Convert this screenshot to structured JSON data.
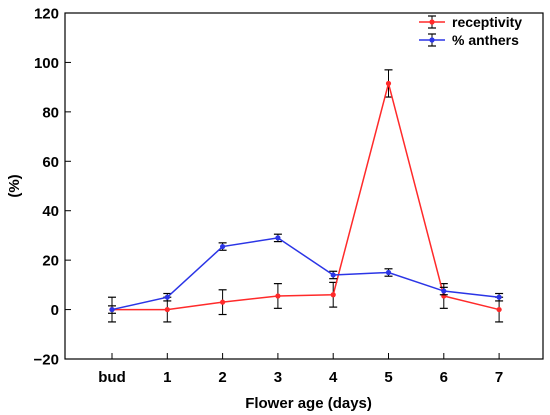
{
  "chart_data": {
    "type": "line",
    "xlabel": "Flower age (days)",
    "ylabel": "(%)",
    "categories": [
      "bud",
      "1",
      "2",
      "3",
      "4",
      "5",
      "6",
      "7"
    ],
    "ylim": [
      -20,
      120
    ],
    "yticks": [
      -20,
      0,
      20,
      40,
      60,
      80,
      100,
      120
    ],
    "grid": false,
    "legend_position": "top-right",
    "series": [
      {
        "name": "receptivity",
        "color": "#ff2a2a",
        "values": [
          0,
          0,
          3,
          5.5,
          6,
          91.5,
          5.5,
          0
        ],
        "errors": [
          5,
          5,
          5,
          5,
          5,
          5.5,
          5,
          5
        ]
      },
      {
        "name": "% anthers",
        "color": "#2b35e6",
        "values": [
          0,
          5,
          25.5,
          29,
          14,
          15,
          7.5,
          5
        ],
        "errors": [
          1.5,
          1.5,
          1.5,
          1.5,
          1.5,
          1.5,
          1.5,
          1.5
        ]
      }
    ]
  }
}
